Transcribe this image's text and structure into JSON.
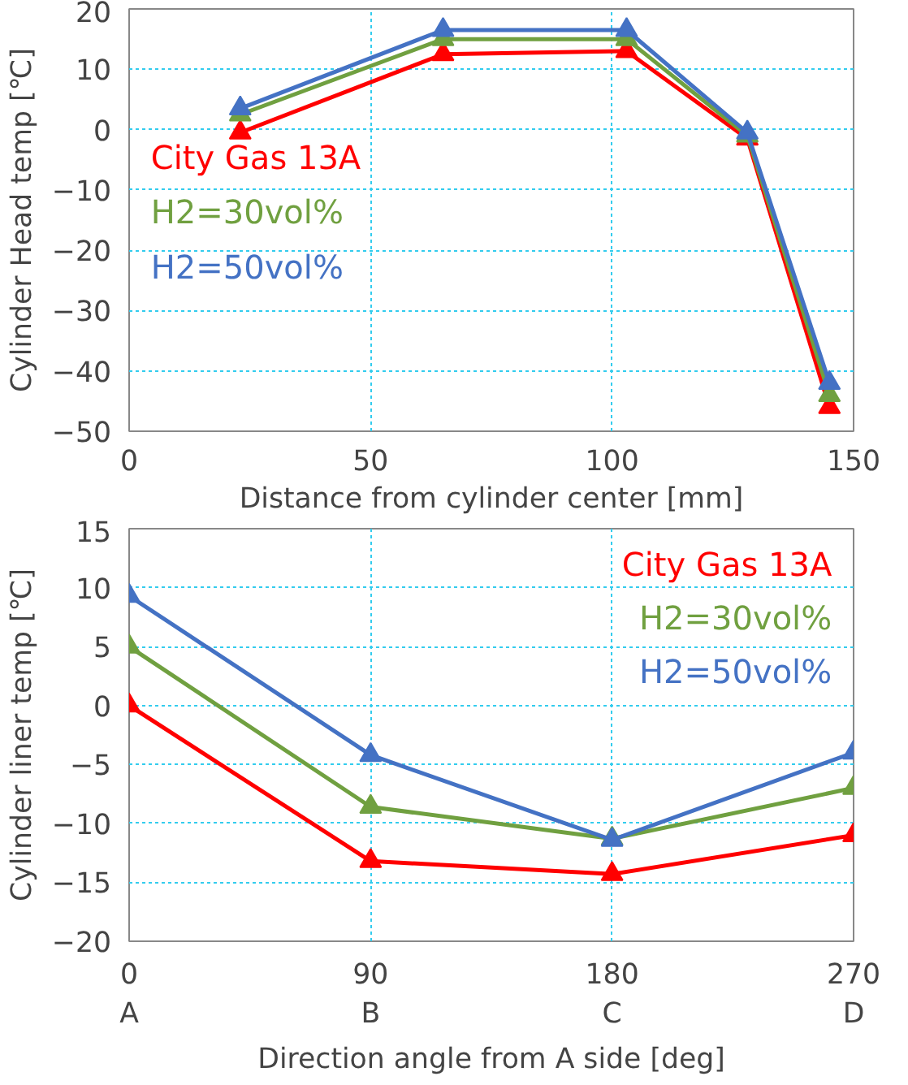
{
  "chart_data": [
    {
      "type": "line",
      "xlabel": "Distance from cylinder center [mm]",
      "ylabel": "Cylinder Head temp [℃]",
      "x": [
        23,
        65,
        103,
        128,
        145
      ],
      "series": [
        {
          "name": "City Gas 13A",
          "color": "#ff0000",
          "values": [
            -0.5,
            12.5,
            13,
            -1.5,
            -46
          ]
        },
        {
          "name": "H2=30vol%",
          "color": "#70a040",
          "values": [
            2.5,
            15,
            15,
            -1,
            -44
          ]
        },
        {
          "name": "H2=50vol%",
          "color": "#4472c4",
          "values": [
            3.5,
            16.5,
            16.5,
            -0.5,
            -42
          ]
        }
      ],
      "xlim": [
        0,
        150
      ],
      "xticks": [
        0,
        50,
        100,
        150
      ],
      "ylim": [
        -50,
        20
      ],
      "yticks": [
        -50,
        -40,
        -30,
        -20,
        -10,
        0,
        10,
        20
      ],
      "grid": true,
      "legend": "left",
      "marker": "triangle",
      "line_style": "solid"
    },
    {
      "type": "line",
      "xlabel": "Direction angle from A side [deg]",
      "ylabel": "Cylinder liner temp [℃]",
      "x": [
        0,
        90,
        180,
        270
      ],
      "series": [
        {
          "name": "City Gas 13A",
          "color": "#ff0000",
          "values": [
            0,
            -13.2,
            -14.3,
            -11
          ]
        },
        {
          "name": "H2=30vol%",
          "color": "#70a040",
          "values": [
            5,
            -8.6,
            -11.3,
            -7
          ]
        },
        {
          "name": "H2=50vol%",
          "color": "#4472c4",
          "values": [
            9.3,
            -4.2,
            -11.4,
            -4
          ]
        }
      ],
      "xlim": [
        0,
        270
      ],
      "xticks": [
        {
          "value": 0,
          "label": "0\nA"
        },
        {
          "value": 90,
          "label": "90\nB"
        },
        {
          "value": 180,
          "label": "180\nC"
        },
        {
          "value": 270,
          "label": "270\nD"
        }
      ],
      "ylim": [
        -20,
        15
      ],
      "yticks": [
        -20,
        -15,
        -10,
        -5,
        0,
        5,
        10,
        15
      ],
      "grid": true,
      "legend": "top right",
      "marker": "triangle",
      "line_style": "solid"
    }
  ]
}
